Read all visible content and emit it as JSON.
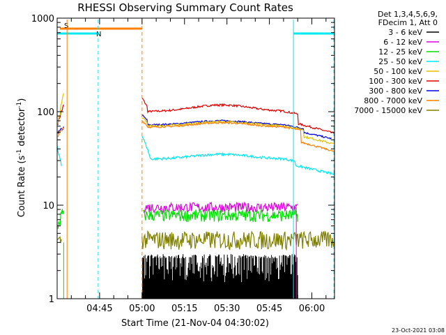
{
  "chart_data": {
    "type": "line",
    "title": "RHESSI Observing Summary Count Rates",
    "xlabel": "Start Time (21-Nov-04 04:30:02)",
    "ylabel": "Count Rate (s",
    "ylabel_sup1": "-1",
    "ylabel_mid": " detector",
    "ylabel_sup2": "-1",
    "ylabel_end": ")",
    "y_scale": "log",
    "ylim": [
      1,
      1000
    ],
    "xlim_minutes": [
      0,
      98
    ],
    "x_ticks": [
      {
        "minutes": 15,
        "label": "04:45"
      },
      {
        "minutes": 30,
        "label": "05:00"
      },
      {
        "minutes": 45,
        "label": "05:15"
      },
      {
        "minutes": 60,
        "label": "05:30"
      },
      {
        "minutes": 75,
        "label": "05:45"
      },
      {
        "minutes": 90,
        "label": "06:00"
      }
    ],
    "y_ticks": [
      {
        "value": 1,
        "label": "1"
      },
      {
        "value": 10,
        "label": "10"
      },
      {
        "value": 100,
        "label": "100"
      },
      {
        "value": 1000,
        "label": "1000"
      }
    ],
    "legend_header": [
      "Det 1,3,4,5,6,9,",
      "FDecim 1, Att 0"
    ],
    "series": [
      {
        "name": "3 - 6 keV",
        "color": "#000000"
      },
      {
        "name": "6 - 12 keV",
        "color": "#e000e0"
      },
      {
        "name": "12 - 25 keV",
        "color": "#00e000"
      },
      {
        "name": "25 - 50 keV",
        "color": "#00e8f0"
      },
      {
        "name": "50 - 100 keV",
        "color": "#e0c000"
      },
      {
        "name": "100 - 300 keV",
        "color": "#e00000"
      },
      {
        "name": "300 - 800 keV",
        "color": "#0000e0"
      },
      {
        "name": "800 - 7000 keV",
        "color": "#ff8000"
      },
      {
        "name": "7000 - 15000 keV",
        "color": "#808000"
      }
    ],
    "flags": [
      {
        "label": "S",
        "color": "#ff8000",
        "from_minutes": 1,
        "to_minutes": 30
      },
      {
        "label": "N",
        "color": "#00e8f0",
        "from_minutes": 0,
        "to_minutes": 14.5
      },
      {
        "label": "",
        "color": "#00e8f0",
        "from_minutes": 83.5,
        "to_minutes": 98
      }
    ],
    "timestamp": "23-Oct-2021 03:08"
  }
}
